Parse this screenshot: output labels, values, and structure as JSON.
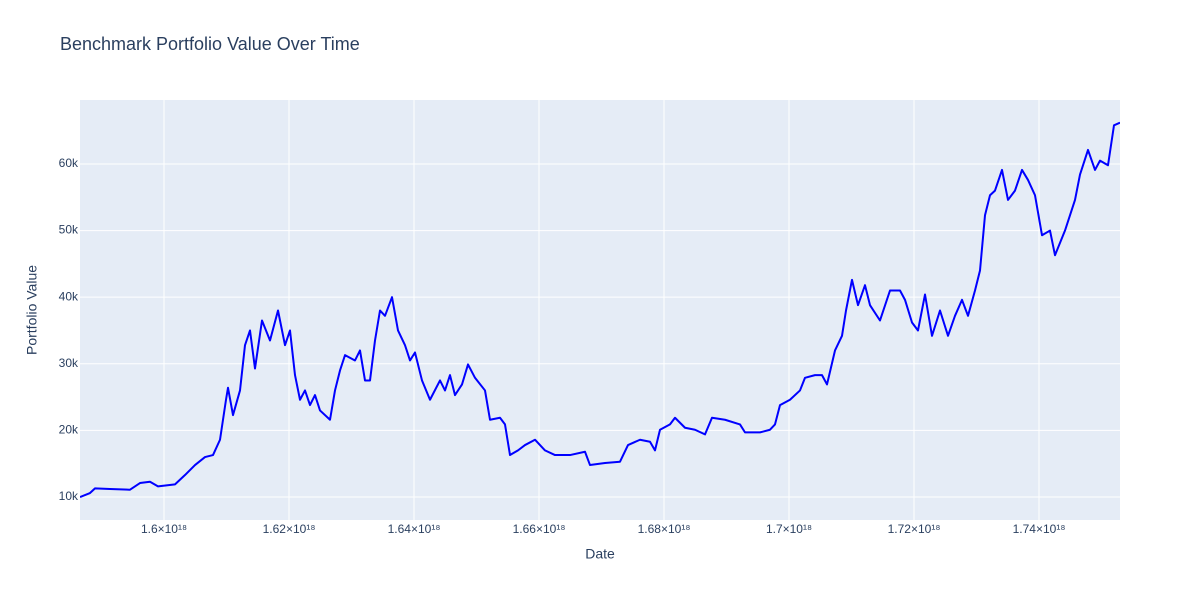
{
  "chart_data": {
    "type": "line",
    "title": "Benchmark Portfolio Value Over Time",
    "x_label": "Date",
    "y_label": "Portfolio Value",
    "color": "#0000ff",
    "grid": true,
    "xlim": [
      1.58656e+18,
      1.75296e+18
    ],
    "xticks": [
      {
        "value": 1.6e+18,
        "label": "1.6×10¹⁸"
      },
      {
        "value": 1.62e+18,
        "label": "1.62×10¹⁸"
      },
      {
        "value": 1.64e+18,
        "label": "1.64×10¹⁸"
      },
      {
        "value": 1.66e+18,
        "label": "1.66×10¹⁸"
      },
      {
        "value": 1.68e+18,
        "label": "1.68×10¹⁸"
      },
      {
        "value": 1.7e+18,
        "label": "1.7×10¹⁸"
      },
      {
        "value": 1.72e+18,
        "label": "1.72×10¹⁸"
      },
      {
        "value": 1.74e+18,
        "label": "1.74×10¹⁸"
      }
    ],
    "ylim": [
      6550,
      69600
    ],
    "yticks": [
      {
        "value": 10000,
        "label": "10k"
      },
      {
        "value": 20000,
        "label": "20k"
      },
      {
        "value": 30000,
        "label": "30k"
      },
      {
        "value": 40000,
        "label": "40k"
      },
      {
        "value": 50000,
        "label": "50k"
      },
      {
        "value": 60000,
        "label": "60k"
      }
    ],
    "x": [
      1.58656e+18,
      1.58816e+18,
      1.58896e+18,
      1.59136e+18,
      1.59456e+18,
      1.59616e+18,
      1.59776e+18,
      1.59904e+18,
      1.60176e+18,
      1.60336e+18,
      1.60496e+18,
      1.60656e+18,
      1.60784e+18,
      1.60896e+18,
      1.60992e+18,
      1.61024e+18,
      1.61104e+18,
      1.61216e+18,
      1.61296e+18,
      1.61376e+18,
      1.61456e+18,
      1.61568e+18,
      1.61696e+18,
      1.61824e+18,
      1.61936e+18,
      1.62016e+18,
      1.62096e+18,
      1.62176e+18,
      1.62256e+18,
      1.62336e+18,
      1.62416e+18,
      1.62496e+18,
      1.62656e+18,
      1.62736e+18,
      1.62816e+18,
      1.62896e+18,
      1.63056e+18,
      1.63136e+18,
      1.63216e+18,
      1.63296e+18,
      1.63376e+18,
      1.63456e+18,
      1.63536e+18,
      1.63648e+18,
      1.63744e+18,
      1.63856e+18,
      1.63936e+18,
      1.64016e+18,
      1.64128e+18,
      1.64256e+18,
      1.64416e+18,
      1.64496e+18,
      1.64576e+18,
      1.64656e+18,
      1.64768e+18,
      1.64864e+18,
      1.64976e+18,
      1.65136e+18,
      1.65216e+18,
      1.65376e+18,
      1.65456e+18,
      1.65536e+18,
      1.65664e+18,
      1.65776e+18,
      1.65936e+18,
      1.66096e+18,
      1.66256e+18,
      1.66496e+18,
      1.66736e+18,
      1.66816e+18,
      1.67056e+18,
      1.67296e+18,
      1.67424e+18,
      1.67616e+18,
      1.67776e+18,
      1.67856e+18,
      1.67936e+18,
      1.68096e+18,
      1.68176e+18,
      1.68336e+18,
      1.68496e+18,
      1.68656e+18,
      1.68768e+18,
      1.68976e+18,
      1.69216e+18,
      1.69296e+18,
      1.69536e+18,
      1.69696e+18,
      1.69776e+18,
      1.69856e+18,
      1.70016e+18,
      1.70176e+18,
      1.70256e+18,
      1.70416e+18,
      1.70528e+18,
      1.70608e+18,
      1.70736e+18,
      1.70848e+18,
      1.70912e+18,
      1.71008e+18,
      1.71104e+18,
      1.71216e+18,
      1.71296e+18,
      1.71456e+18,
      1.71616e+18,
      1.71776e+18,
      1.71856e+18,
      1.71968e+18,
      1.72064e+18,
      1.72176e+18,
      1.72288e+18,
      1.72416e+18,
      1.72544e+18,
      1.72656e+18,
      1.72768e+18,
      1.72864e+18,
      1.72976e+18,
      1.73056e+18,
      1.73136e+18,
      1.73216e+18,
      1.73296e+18,
      1.73408e+18,
      1.73504e+18,
      1.73616e+18,
      1.73728e+18,
      1.73824e+18,
      1.73936e+18,
      1.74048e+18,
      1.74176e+18,
      1.74256e+18,
      1.74416e+18,
      1.74576e+18,
      1.74656e+18,
      1.74784e+18,
      1.74896e+18,
      1.74976e+18,
      1.75104e+18,
      1.752e+18,
      1.75296e+18
    ],
    "values": [
      10000,
      10600,
      11300,
      11200,
      11100,
      12100,
      12300,
      11600,
      11900,
      13300,
      14800,
      16000,
      16300,
      18600,
      24600,
      26400,
      22300,
      26000,
      32800,
      35000,
      29300,
      36500,
      33500,
      38000,
      32800,
      35000,
      28300,
      24600,
      26000,
      23800,
      25300,
      23000,
      21600,
      26000,
      29000,
      31300,
      30500,
      32000,
      27500,
      27500,
      33500,
      38000,
      37200,
      40000,
      35000,
      32800,
      30500,
      31700,
      27500,
      24600,
      27500,
      26000,
      28300,
      25300,
      26900,
      29900,
      27900,
      26000,
      21600,
      21900,
      20900,
      16300,
      17000,
      17800,
      18600,
      17000,
      16300,
      16300,
      16800,
      14800,
      15100,
      15300,
      17800,
      18600,
      18300,
      17000,
      20100,
      20900,
      21900,
      20400,
      20100,
      19400,
      21900,
      21600,
      20900,
      19700,
      19700,
      20100,
      20900,
      23800,
      24600,
      26000,
      27900,
      28300,
      28300,
      26900,
      32000,
      34200,
      38000,
      42600,
      38800,
      41800,
      38800,
      36500,
      41000,
      41000,
      39600,
      36200,
      35000,
      40400,
      34200,
      38000,
      34200,
      37200,
      39600,
      37200,
      41000,
      44000,
      52300,
      55300,
      56000,
      59100,
      54600,
      56000,
      59100,
      57600,
      55300,
      49300,
      50000,
      46300,
      50000,
      54600,
      58400,
      62100,
      59100,
      60500,
      59800,
      65800,
      66200
    ]
  }
}
